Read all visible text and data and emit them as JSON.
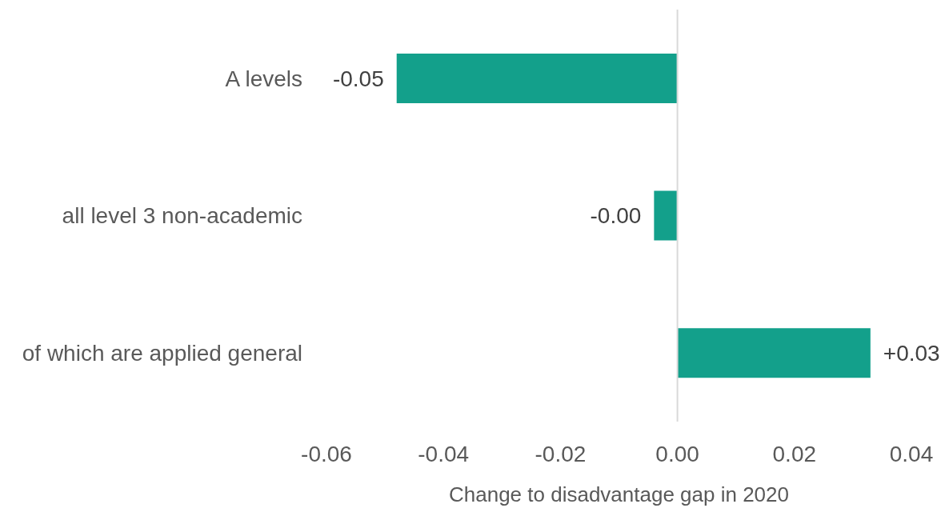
{
  "chart_data": {
    "type": "bar",
    "orientation": "horizontal",
    "categories": [
      "A levels",
      "all level 3 non-academic",
      "of which are applied general"
    ],
    "values": [
      -0.048,
      -0.004,
      0.033
    ],
    "value_labels": [
      "-0.05",
      "-0.00",
      "+0.03"
    ],
    "color": "#13a08b",
    "xlim": [
      -0.06,
      0.04
    ],
    "xticks": [
      -0.06,
      -0.04,
      -0.02,
      {
        "value": 0,
        "label": "0.00"
      },
      0.02,
      0.04
    ],
    "xlabel": "Change to disadvantage gap in 2020"
  }
}
